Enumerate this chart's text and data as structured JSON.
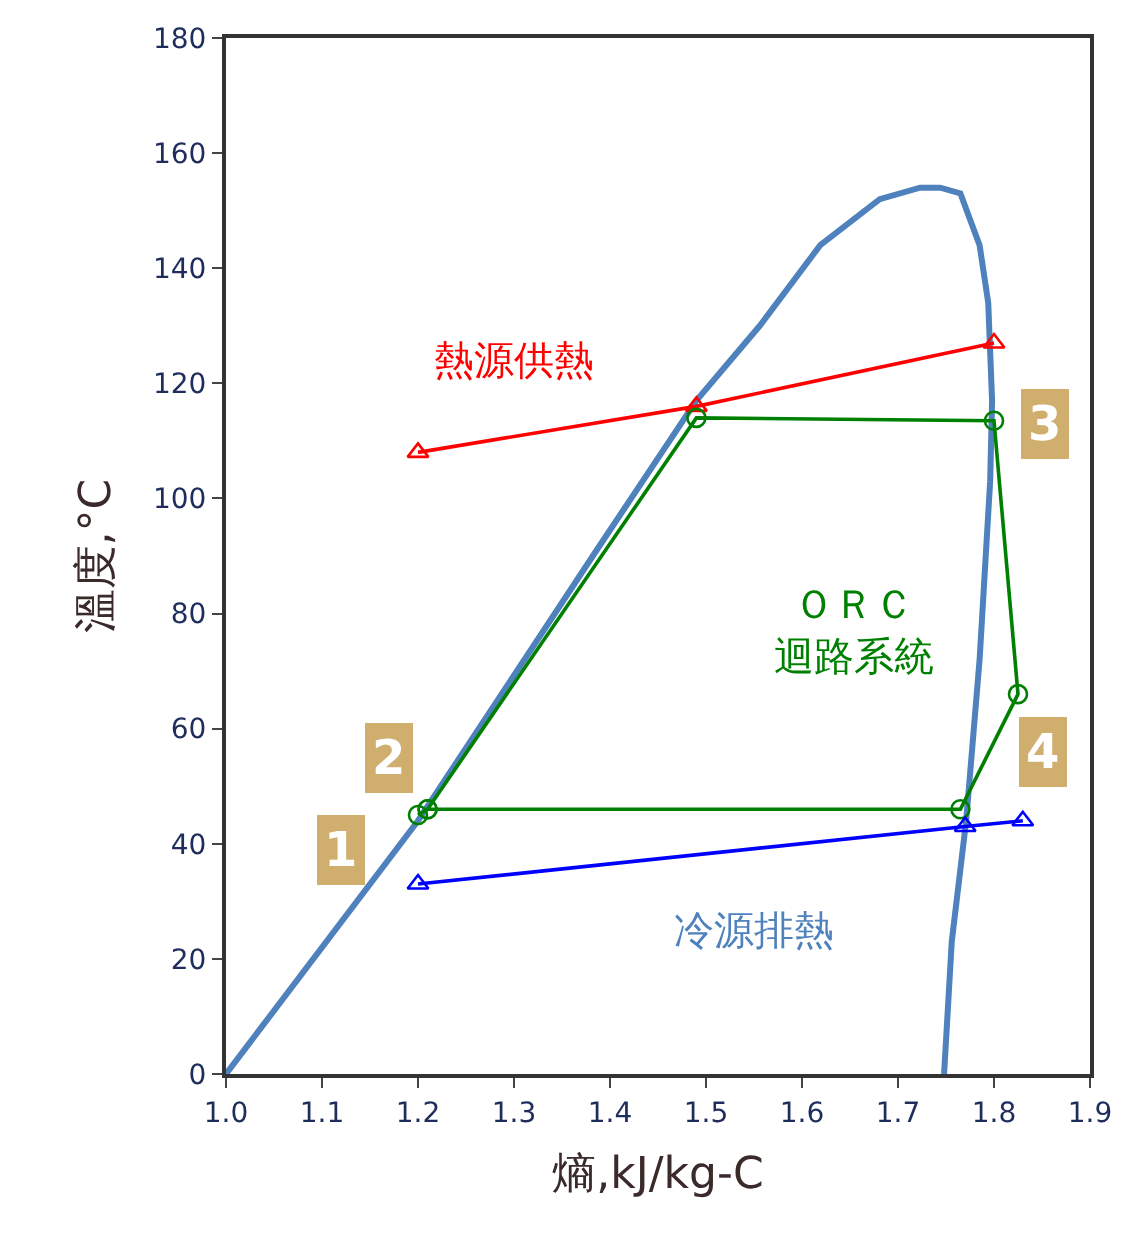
{
  "chart_data": {
    "type": "line",
    "xlabel": "熵,kJ/kg-C",
    "ylabel": "溫度,°C",
    "xlim": [
      1.0,
      1.9
    ],
    "ylim": [
      0,
      180
    ],
    "xticks": [
      {
        "value": 1.0,
        "label": "1.0"
      },
      1.1,
      1.2,
      1.3,
      1.4,
      1.5,
      1.6,
      1.7,
      1.8,
      1.9
    ],
    "yticks": [
      0,
      20,
      40,
      60,
      80,
      100,
      120,
      140,
      160,
      180
    ],
    "legend": false,
    "series": [
      {
        "color": "#4f81bd",
        "marker": "none",
        "x": [
          1.0,
          1.2,
          1.39,
          1.49,
          1.556,
          1.619,
          1.681,
          1.723,
          1.744,
          1.765,
          1.785,
          1.794,
          1.798,
          1.796,
          1.785,
          1.771,
          1.756,
          1.748
        ],
        "values": [
          0,
          44,
          92,
          117,
          130,
          144,
          152,
          154,
          154,
          153,
          144,
          134,
          117,
          103,
          72,
          44,
          23,
          0
        ]
      },
      {
        "name": "熱源供熱",
        "color": "#ff0000",
        "marker": "triangle",
        "x": [
          1.2,
          1.49,
          1.8
        ],
        "values": [
          108,
          116,
          127
        ]
      },
      {
        "name": "ＯＲＣ迴路系統",
        "color": "#008000",
        "marker": "circle",
        "x": [
          1.2,
          1.21,
          1.49,
          1.8,
          1.825,
          1.765,
          1.21
        ],
        "values": [
          45,
          46,
          114,
          113.5,
          66,
          46,
          46
        ]
      },
      {
        "name": "冷源排熱",
        "color": "#0000ff",
        "marker": "triangle",
        "x": [
          1.2,
          1.77,
          1.83
        ],
        "values": [
          33,
          43,
          44
        ]
      }
    ],
    "annotations": [
      {
        "text": "1",
        "x": 1.12,
        "y": 39
      },
      {
        "text": "2",
        "x": 1.17,
        "y": 55
      },
      {
        "text": "3",
        "x": 1.853,
        "y": 113
      },
      {
        "text": "4",
        "x": 1.852,
        "y": 56
      }
    ]
  }
}
